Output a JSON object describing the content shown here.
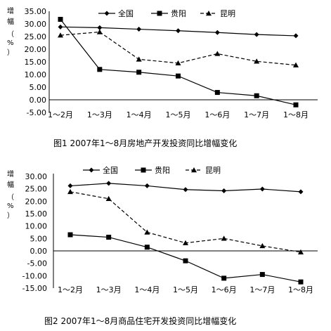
{
  "chart_data": [
    {
      "type": "line",
      "title": "图1 2007年1～8月房地产开发投资同比增幅变化",
      "ylabel": "增幅（%）",
      "categories": [
        "1～2月",
        "1～3月",
        "1～4月",
        "1～5月",
        "1～6月",
        "1～7月",
        "1～8月"
      ],
      "yticks": [
        "35.00",
        "30.00",
        "25.00",
        "20.00",
        "15.00",
        "10.00",
        "5.00",
        "0.00",
        "-5.00"
      ],
      "ylim": [
        -5,
        35
      ],
      "grid": false,
      "legend_position": "top",
      "series": [
        {
          "name": "全国",
          "marker": "diamond",
          "line": "solid",
          "values": [
            28.8,
            28.5,
            27.9,
            27.3,
            26.6,
            25.8,
            25.3
          ]
        },
        {
          "name": "贵阳",
          "marker": "square",
          "line": "solid",
          "values": [
            31.8,
            12.0,
            10.9,
            9.4,
            2.9,
            1.6,
            -2.0
          ]
        },
        {
          "name": "昆明",
          "marker": "triangle",
          "line": "dashed",
          "values": [
            25.5,
            26.8,
            16.0,
            14.5,
            18.2,
            15.2,
            13.7
          ]
        }
      ]
    },
    {
      "type": "line",
      "title": "图2 2007年1～8月商品住宅开发投资同比增幅变化",
      "ylabel": "增幅（%）",
      "categories": [
        "1～2月",
        "1～3月",
        "1～4月",
        "1～5月",
        "1～6月",
        "1～7月",
        "1～8月"
      ],
      "yticks": [
        "30.00",
        "25.00",
        "20.00",
        "15.00",
        "10.00",
        "5.00",
        "0.00",
        "-5.00",
        "-10.00",
        "-15.00"
      ],
      "ylim": [
        -15,
        30
      ],
      "grid": false,
      "legend_position": "top",
      "series": [
        {
          "name": "全国",
          "marker": "diamond",
          "line": "solid",
          "values": [
            26.2,
            27.2,
            26.2,
            24.7,
            24.2,
            24.9,
            23.8
          ]
        },
        {
          "name": "贵阳",
          "marker": "square",
          "line": "solid",
          "values": [
            6.5,
            5.5,
            1.5,
            -4.0,
            -11.0,
            -9.5,
            -12.5
          ]
        },
        {
          "name": "昆明",
          "marker": "triangle",
          "line": "dashed",
          "values": [
            23.8,
            21.0,
            7.5,
            3.2,
            5.0,
            2.0,
            -0.5
          ]
        }
      ]
    }
  ]
}
